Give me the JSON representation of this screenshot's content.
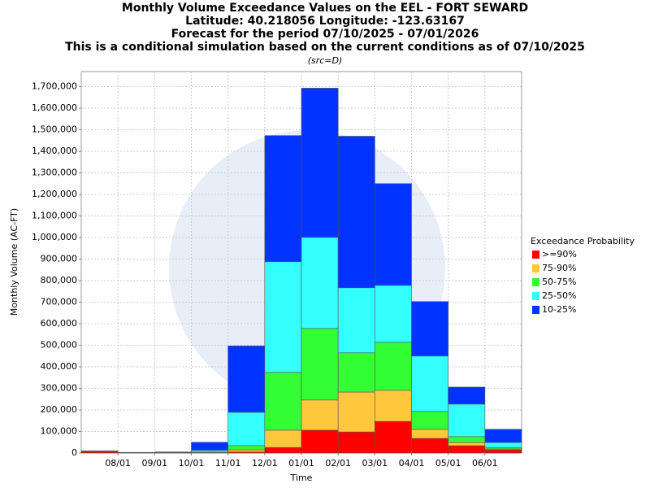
{
  "chart_data": {
    "type": "stacked_bar",
    "title": "Monthly Volume Exceedance Values on the EEL - FORT SEWARD",
    "subtitles": [
      "Latitude: 40.218056 Longitude: -123.63167",
      "Forecast for the period 07/10/2025 - 07/01/2026",
      "This is a conditional simulation based on the current conditions as of 07/10/2025"
    ],
    "source_note": "(src=D)",
    "x_label": "Time",
    "y_label": "Monthly Volume (AC-FT)",
    "legend_title": "Exceedance Probability",
    "legend": "right",
    "grid": true,
    "categories": [
      null,
      null,
      null,
      null,
      null,
      null,
      null,
      null,
      null,
      null,
      null,
      null
    ],
    "xlim": [
      0,
      12
    ],
    "xticks": [
      {
        "value": 1,
        "label": "08/01"
      },
      {
        "value": 2,
        "label": "09/01"
      },
      {
        "value": 3,
        "label": "10/01"
      },
      {
        "value": 4,
        "label": "11/01"
      },
      {
        "value": 5,
        "label": "12/01"
      },
      {
        "value": 6,
        "label": "01/01"
      },
      {
        "value": 7,
        "label": "02/01"
      },
      {
        "value": 8,
        "label": "03/01"
      },
      {
        "value": 9,
        "label": "04/01"
      },
      {
        "value": 10,
        "label": "05/01"
      },
      {
        "value": 11,
        "label": "06/01"
      }
    ],
    "ylim": [
      0,
      1770000
    ],
    "yticks": [
      0,
      {
        "value": 100000,
        "label": "100,000"
      },
      {
        "value": 200000,
        "label": "200,000"
      },
      {
        "value": 300000,
        "label": "300,000"
      },
      {
        "value": 400000,
        "label": "400,000"
      },
      {
        "value": 500000,
        "label": "500,000"
      },
      {
        "value": 600000,
        "label": "600,000"
      },
      {
        "value": 700000,
        "label": "700,000"
      },
      {
        "value": 800000,
        "label": "800,000"
      },
      {
        "value": 900000,
        "label": "900,000"
      },
      {
        "value": 1000000,
        "label": "1,000,000"
      },
      {
        "value": 1100000,
        "label": "1,100,000"
      },
      {
        "value": 1200000,
        "label": "1,200,000"
      },
      {
        "value": 1300000,
        "label": "1,300,000"
      },
      {
        "value": 1400000,
        "label": "1,400,000"
      },
      {
        "value": 1500000,
        "label": "1,500,000"
      },
      {
        "value": 1600000,
        "label": "1,600,000"
      },
      {
        "value": 1700000,
        "label": "1,700,000"
      }
    ],
    "series": [
      {
        "name": ">=90%",
        "color": "#ff0000",
        "values": [
          6000,
          1000,
          500,
          1000,
          5000,
          26000,
          106000,
          98000,
          147000,
          68000,
          34000,
          15000
        ]
      },
      {
        "name": "75-90%",
        "color": "#ffc83c",
        "values": [
          1000,
          500,
          500,
          1000,
          10000,
          80000,
          140000,
          185000,
          144000,
          42000,
          15000,
          4000
        ]
      },
      {
        "name": "50-75%",
        "color": "#33ff33",
        "values": [
          1000,
          500,
          1000,
          3000,
          19000,
          268000,
          332000,
          182000,
          223000,
          83000,
          27000,
          7000
        ]
      },
      {
        "name": "25-50%",
        "color": "#33ffff",
        "values": [
          1000,
          500,
          2000,
          8000,
          155000,
          514000,
          423000,
          302000,
          264000,
          257000,
          151000,
          23000
        ]
      },
      {
        "name": "10-25%",
        "color": "#0033ff",
        "values": [
          1000,
          500,
          1000,
          37000,
          308000,
          585000,
          692000,
          703000,
          472000,
          253000,
          79000,
          61000
        ]
      }
    ]
  }
}
